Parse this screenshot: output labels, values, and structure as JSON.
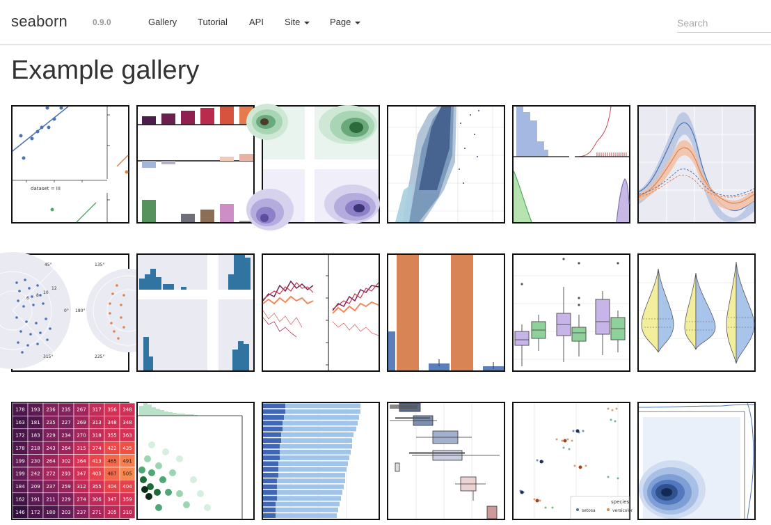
{
  "navbar": {
    "brand": "seaborn",
    "version": "0.9.0",
    "links": [
      "Gallery",
      "Tutorial",
      "API"
    ],
    "dropdowns": [
      "Site",
      "Page"
    ],
    "search_placeholder": "Search"
  },
  "page": {
    "title": "Example gallery"
  },
  "thumbnails": {
    "anscombe_label": "dataset = III",
    "polar_angles": [
      "45°",
      "135°",
      "0°",
      "180°",
      "315°",
      "225°"
    ],
    "polar_radii": [
      "10",
      "12",
      "6",
      "8"
    ],
    "heatmap_rows": [
      [
        "178",
        "193",
        "236",
        "235",
        "267",
        "317",
        "356",
        "348"
      ],
      [
        "163",
        "181",
        "235",
        "227",
        "269",
        "313",
        "348",
        "348"
      ],
      [
        "172",
        "183",
        "229",
        "234",
        "270",
        "318",
        "355",
        "363"
      ],
      [
        "178",
        "218",
        "243",
        "264",
        "315",
        "374",
        "422",
        "435"
      ],
      [
        "199",
        "230",
        "264",
        "302",
        "364",
        "413",
        "465",
        "491"
      ],
      [
        "199",
        "242",
        "272",
        "293",
        "347",
        "405",
        "467",
        "505"
      ],
      [
        "184",
        "209",
        "237",
        "259",
        "312",
        "355",
        "404",
        "404"
      ],
      [
        "162",
        "191",
        "211",
        "229",
        "274",
        "306",
        "347",
        "359"
      ],
      [
        "146",
        "172",
        "180",
        "203",
        "237",
        "271",
        "305",
        "310"
      ]
    ],
    "legend_title": "species",
    "legend_items": [
      "setosa",
      "versicolor"
    ]
  },
  "colors": {
    "brand_text": "#333333",
    "version_text": "#999999",
    "thumb_border": "#111111"
  }
}
